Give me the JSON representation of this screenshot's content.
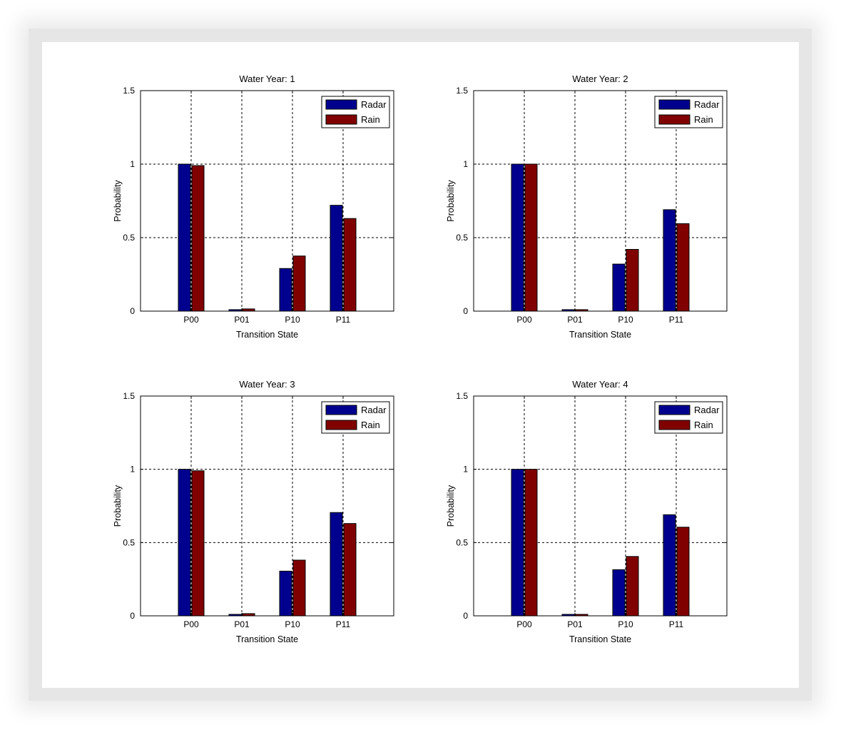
{
  "colors": {
    "radar": "#00008f",
    "rain": "#800000",
    "grid": "#000000"
  },
  "chart_data": [
    {
      "type": "bar",
      "title": "Water Year: 1",
      "xlabel": "Transition State",
      "ylabel": "Probability",
      "categories": [
        "P00",
        "P01",
        "P10",
        "P11"
      ],
      "ylim": [
        0,
        1.5
      ],
      "yticks": [
        "0",
        "0.5",
        "1",
        "1.5"
      ],
      "grid": true,
      "legend": "top-right",
      "series": [
        {
          "name": "Radar",
          "values": [
            1.0,
            0.01,
            0.29,
            0.72
          ]
        },
        {
          "name": "Rain",
          "values": [
            0.99,
            0.015,
            0.375,
            0.63
          ]
        }
      ]
    },
    {
      "type": "bar",
      "title": "Water Year: 2",
      "xlabel": "Transition State",
      "ylabel": "Probability",
      "categories": [
        "P00",
        "P01",
        "P10",
        "P11"
      ],
      "ylim": [
        0,
        1.5
      ],
      "yticks": [
        "0",
        "0.5",
        "1",
        "1.5"
      ],
      "grid": true,
      "legend": "top-right",
      "series": [
        {
          "name": "Radar",
          "values": [
            1.0,
            0.01,
            0.32,
            0.69
          ]
        },
        {
          "name": "Rain",
          "values": [
            1.0,
            0.01,
            0.42,
            0.595
          ]
        }
      ]
    },
    {
      "type": "bar",
      "title": "Water Year: 3",
      "xlabel": "Transition State",
      "ylabel": "Probability",
      "categories": [
        "P00",
        "P01",
        "P10",
        "P11"
      ],
      "ylim": [
        0,
        1.5
      ],
      "yticks": [
        "0",
        "0.5",
        "1",
        "1.5"
      ],
      "grid": true,
      "legend": "top-right",
      "series": [
        {
          "name": "Radar",
          "values": [
            1.0,
            0.01,
            0.305,
            0.705
          ]
        },
        {
          "name": "Rain",
          "values": [
            0.99,
            0.015,
            0.38,
            0.63
          ]
        }
      ]
    },
    {
      "type": "bar",
      "title": "Water Year: 4",
      "xlabel": "Transition State",
      "ylabel": "Probability",
      "categories": [
        "P00",
        "P01",
        "P10",
        "P11"
      ],
      "ylim": [
        0,
        1.5
      ],
      "yticks": [
        "0",
        "0.5",
        "1",
        "1.5"
      ],
      "grid": true,
      "legend": "top-right",
      "series": [
        {
          "name": "Radar",
          "values": [
            1.0,
            0.01,
            0.315,
            0.69
          ]
        },
        {
          "name": "Rain",
          "values": [
            1.0,
            0.01,
            0.405,
            0.605
          ]
        }
      ]
    }
  ]
}
